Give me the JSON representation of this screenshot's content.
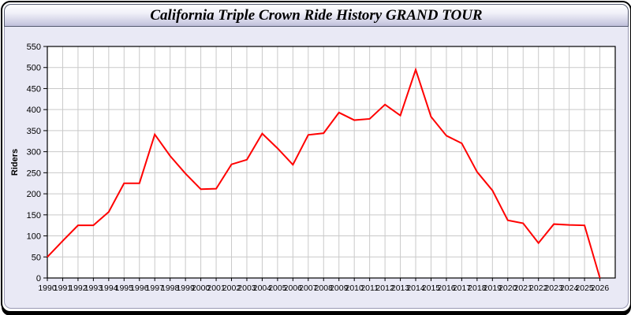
{
  "window": {
    "title": "California Triple Crown Ride History GRAND TOUR"
  },
  "colors": {
    "line": "#ff0000",
    "plot_background": "#ffffff",
    "body_background": "#e9e9f5",
    "gridline": "#c9c9c9",
    "axis": "#000000",
    "titlebar_gradient_top": "#ffffff",
    "titlebar_gradient_bottom": "#c7c7e0"
  },
  "chart_data": {
    "type": "line",
    "title": "California Triple Crown Ride History GRAND TOUR",
    "xlabel": "",
    "ylabel": "Riders",
    "ylim": [
      0,
      550
    ],
    "yticks": [
      0,
      50,
      100,
      150,
      200,
      250,
      300,
      350,
      400,
      450,
      500,
      550
    ],
    "grid": true,
    "legend": "none",
    "x": [
      1990,
      1991,
      1992,
      1993,
      1994,
      1995,
      1996,
      1997,
      1998,
      1999,
      2000,
      2001,
      2002,
      2003,
      2004,
      2005,
      2006,
      2007,
      2008,
      2009,
      2010,
      2011,
      2012,
      2013,
      2014,
      2015,
      2016,
      2017,
      2018,
      2019,
      2020,
      2021,
      2022,
      2023,
      2024,
      2025,
      2026
    ],
    "series": [
      {
        "name": "Riders",
        "color": "#ff0000",
        "values": [
          50,
          88,
          125,
          125,
          157,
          225,
          225,
          341,
          290,
          248,
          211,
          212,
          270,
          281,
          343,
          308,
          269,
          340,
          344,
          393,
          375,
          378,
          412,
          386,
          495,
          383,
          338,
          320,
          252,
          208,
          137,
          130,
          83,
          128,
          126,
          125,
          0
        ]
      }
    ]
  }
}
